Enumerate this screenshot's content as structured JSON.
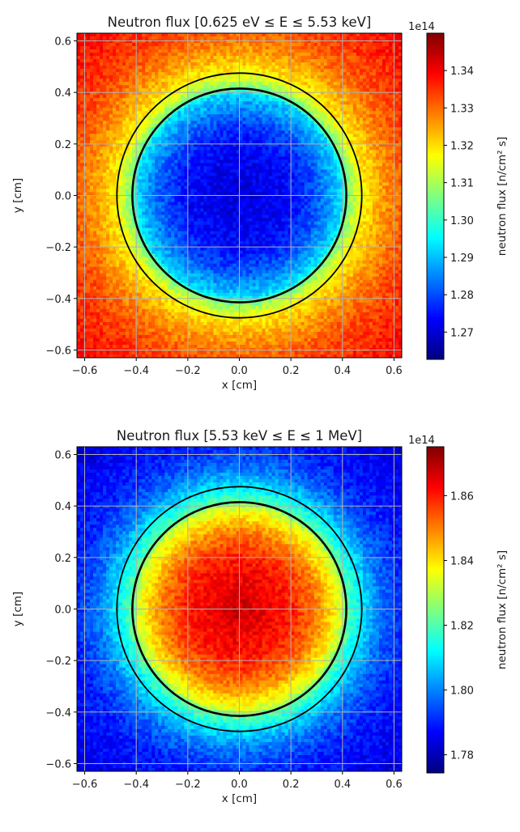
{
  "chart_data": [
    {
      "type": "heatmap",
      "title": "Neutron flux [0.625 eV ≤ E ≤ 5.53 keV]",
      "xlabel": "x [cm]",
      "ylabel": "y [cm]",
      "xlim": [
        -0.63,
        0.63
      ],
      "ylim": [
        -0.63,
        0.63
      ],
      "xticks": [
        "−0.6",
        "−0.4",
        "−0.2",
        "0.0",
        "0.2",
        "0.4",
        "0.6"
      ],
      "yticks": [
        "−0.6",
        "−0.4",
        "−0.2",
        "0.0",
        "0.2",
        "0.4",
        "0.6"
      ],
      "tick_values": [
        -0.6,
        -0.4,
        -0.2,
        0.0,
        0.2,
        0.4,
        0.6
      ],
      "grid": true,
      "colormap": "jet",
      "colorbar": {
        "label": "neutron flux [n/cm² s]",
        "offset_text": "1e14",
        "range": [
          1.2627,
          1.35
        ],
        "ticks": [
          "1.27",
          "1.28",
          "1.29",
          "1.30",
          "1.31",
          "1.32",
          "1.33",
          "1.34"
        ],
        "tick_values": [
          1.27,
          1.28,
          1.29,
          1.3,
          1.31,
          1.32,
          1.33,
          1.34
        ]
      },
      "circles_radii_cm": [
        0.415,
        0.475
      ],
      "radial_profile": {
        "r": [
          0.0,
          0.2,
          0.3,
          0.4,
          0.415,
          0.475,
          0.55,
          0.65,
          0.89
        ],
        "value": [
          1.27,
          1.274,
          1.281,
          1.293,
          1.305,
          1.318,
          1.325,
          1.332,
          1.34
        ]
      }
    },
    {
      "type": "heatmap",
      "title": "Neutron flux [5.53 keV ≤ E ≤ 1 MeV]",
      "xlabel": "x [cm]",
      "ylabel": "y [cm]",
      "xlim": [
        -0.63,
        0.63
      ],
      "ylim": [
        -0.63,
        0.63
      ],
      "xticks": [
        "−0.6",
        "−0.4",
        "−0.2",
        "0.0",
        "0.2",
        "0.4",
        "0.6"
      ],
      "yticks": [
        "−0.6",
        "−0.4",
        "−0.2",
        "0.0",
        "0.2",
        "0.4",
        "0.6"
      ],
      "tick_values": [
        -0.6,
        -0.4,
        -0.2,
        0.0,
        0.2,
        0.4,
        0.6
      ],
      "grid": true,
      "colormap": "jet",
      "colorbar": {
        "label": "neutron flux [n/cm² s]",
        "offset_text": "1e14",
        "range": [
          1.7744,
          1.8751
        ],
        "ticks": [
          "1.78",
          "1.80",
          "1.82",
          "1.84",
          "1.86"
        ],
        "tick_values": [
          1.78,
          1.8,
          1.82,
          1.84,
          1.86
        ]
      },
      "circles_radii_cm": [
        0.415,
        0.475
      ],
      "radial_profile": {
        "r": [
          0.0,
          0.2,
          0.3,
          0.4,
          0.415,
          0.475,
          0.55,
          0.65,
          0.89
        ],
        "value": [
          1.868,
          1.86,
          1.85,
          1.832,
          1.822,
          1.81,
          1.798,
          1.79,
          1.783
        ]
      }
    }
  ]
}
